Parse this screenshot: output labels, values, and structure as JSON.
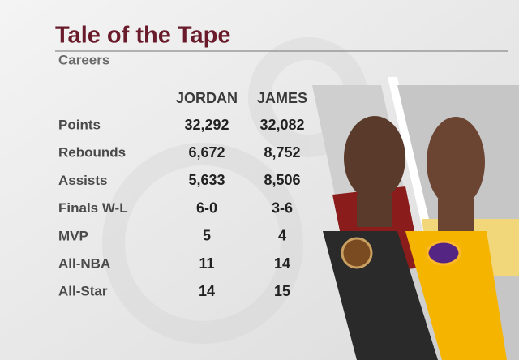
{
  "header": {
    "title": "Tale of the Tape",
    "subtitle": "Careers"
  },
  "table": {
    "columns": [
      "JORDAN",
      "JAMES"
    ],
    "rows": [
      [
        "Points",
        "32,292",
        "32,082"
      ],
      [
        "Rebounds",
        "6,672",
        "8,752"
      ],
      [
        "Assists",
        "5,633",
        "8,506"
      ],
      [
        "Finals W-L",
        "6-0",
        "3-6"
      ],
      [
        "MVP",
        "5",
        "4"
      ],
      [
        "All-NBA",
        "11",
        "14"
      ],
      [
        "All-Star",
        "14",
        "15"
      ]
    ]
  }
}
